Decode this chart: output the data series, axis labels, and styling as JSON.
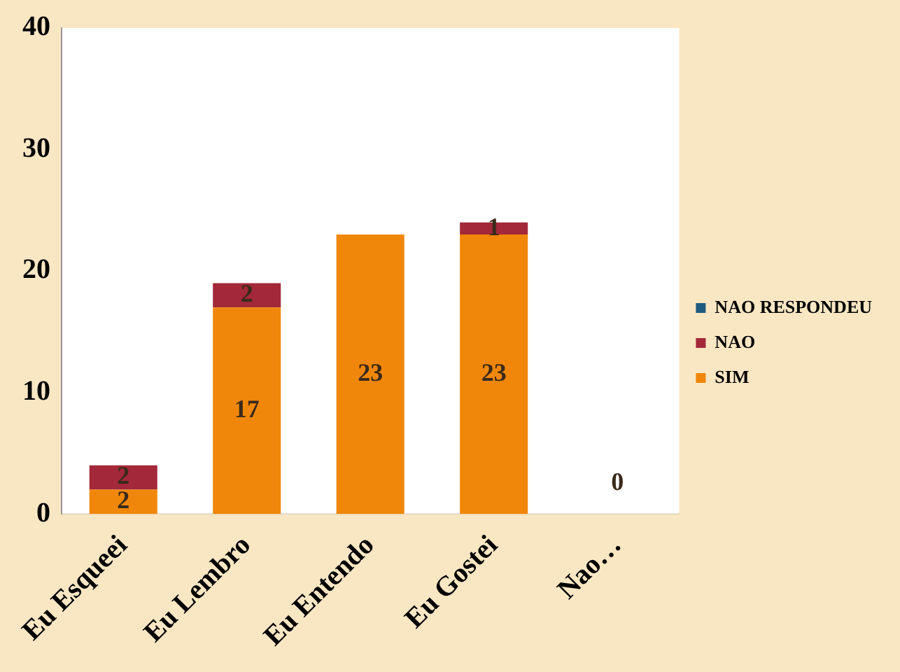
{
  "chart_data": {
    "type": "bar",
    "stacked": true,
    "categories": [
      "Eu Esqueei",
      "Eu Lembro",
      "Eu Entendo",
      "Eu Gostei",
      "Nao…"
    ],
    "series": [
      {
        "name": "SIM",
        "color": "#f0870a",
        "values": [
          2,
          17,
          23,
          23,
          null
        ]
      },
      {
        "name": "NAO",
        "color": "#a3283a",
        "values": [
          2,
          2,
          null,
          1,
          null
        ]
      },
      {
        "name": "NAO RESPONDEU",
        "color": "#1f5a80",
        "values": [
          null,
          null,
          null,
          null,
          0
        ]
      }
    ],
    "ylim": [
      0,
      40
    ],
    "yticks": [
      0,
      10,
      20,
      30,
      40
    ],
    "grid": false,
    "legend": "right",
    "data_labels": true
  }
}
